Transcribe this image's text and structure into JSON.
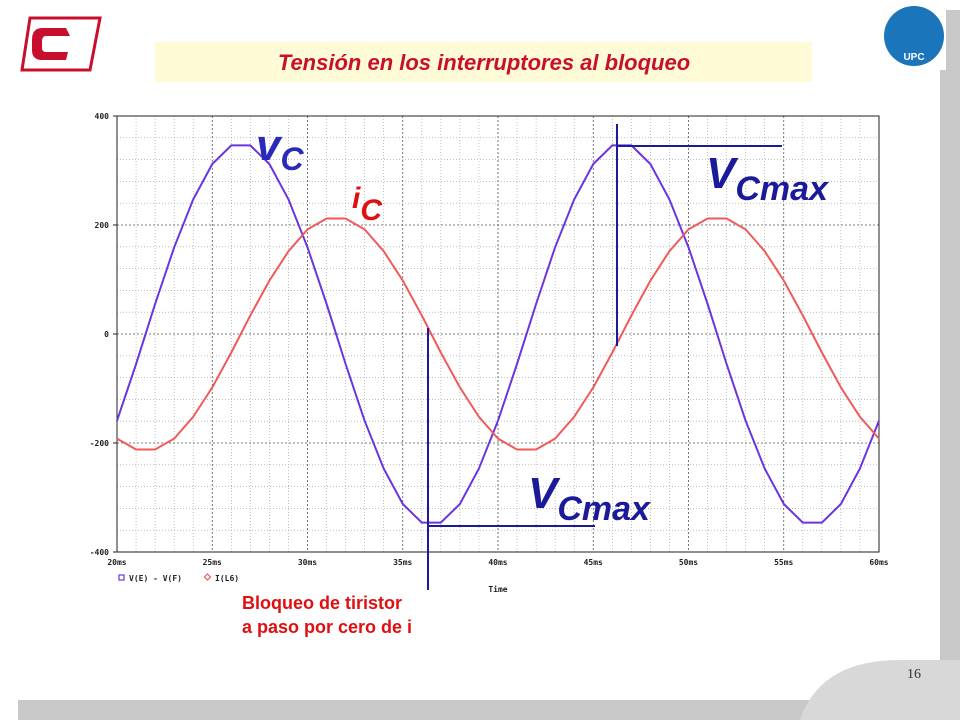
{
  "header": {
    "title": "Tensión en los interruptores al bloqueo"
  },
  "chart_data": {
    "type": "line",
    "x_label": "Time",
    "x": [
      20,
      21,
      22,
      23,
      24,
      25,
      26,
      27,
      28,
      29,
      30,
      31,
      32,
      33,
      34,
      35,
      36,
      37,
      38,
      39,
      40,
      41,
      42,
      43,
      44,
      45,
      46,
      47,
      48,
      49,
      50,
      51,
      52,
      53,
      54,
      55,
      56,
      57,
      58,
      59,
      60
    ],
    "series": [
      {
        "name": "V(E) - V(F)",
        "color": "#6a35e0",
        "values": [
          -159,
          -55,
          55,
          159,
          247,
          312,
          346,
          346,
          312,
          247,
          159,
          55,
          -55,
          -159,
          -247,
          -312,
          -346,
          -346,
          -312,
          -247,
          -159,
          -55,
          55,
          159,
          247,
          312,
          346,
          346,
          312,
          247,
          159,
          55,
          -55,
          -159,
          -247,
          -312,
          -346,
          -346,
          -312,
          -247,
          -159
        ]
      },
      {
        "name": "I(L6)",
        "color": "#ef5a5a",
        "values": [
          -192,
          -212,
          -212,
          -192,
          -152,
          -98,
          -34,
          34,
          98,
          152,
          192,
          212,
          212,
          192,
          152,
          98,
          34,
          -34,
          -98,
          -152,
          -192,
          -212,
          -212,
          -192,
          -152,
          -98,
          -34,
          34,
          98,
          152,
          192,
          212,
          212,
          192,
          152,
          98,
          34,
          -34,
          -98,
          -152,
          -192
        ]
      }
    ],
    "xlim": [
      20,
      60
    ],
    "xticks": [
      {
        "value": 20,
        "label": "20ms"
      },
      {
        "value": 25,
        "label": "25ms"
      },
      {
        "value": 30,
        "label": "30ms"
      },
      {
        "value": 35,
        "label": "35ms"
      },
      {
        "value": 40,
        "label": "40ms"
      },
      {
        "value": 45,
        "label": "45ms"
      },
      {
        "value": 50,
        "label": "50ms"
      },
      {
        "value": 55,
        "label": "55ms"
      },
      {
        "value": 60,
        "label": "60ms"
      }
    ],
    "ylim": [
      -400,
      400
    ],
    "yticks": [
      -400,
      -200,
      0,
      200,
      400
    ],
    "grid": true,
    "annotations": [
      {
        "text": "v",
        "sub": "C"
      },
      {
        "text": "i",
        "sub": "C"
      },
      {
        "text": "V",
        "sub": "Cmax"
      },
      {
        "text": "V",
        "sub": "Cmax"
      }
    ],
    "note": [
      "Bloqueo de tiristor",
      "a paso por cero de i"
    ]
  },
  "page_number": "16"
}
